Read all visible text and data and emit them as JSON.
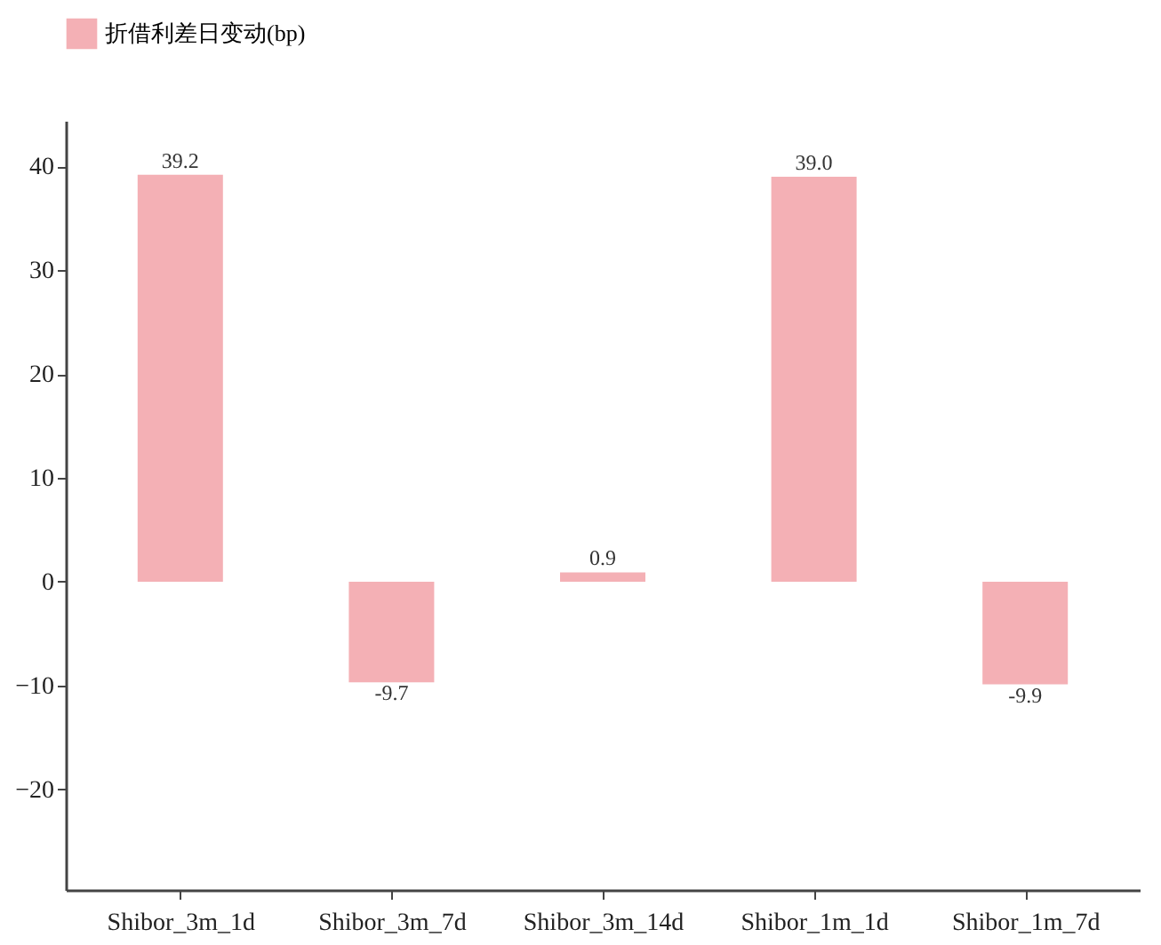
{
  "chart_data": {
    "type": "bar",
    "categories": [
      "Shibor_3m_1d",
      "Shibor_3m_7d",
      "Shibor_3m_14d",
      "Shibor_1m_1d",
      "Shibor_1m_7d"
    ],
    "series": [
      {
        "name": "折借利差日变动(bp)",
        "color": "#f4b0b5",
        "values": [
          39.2,
          -9.7,
          0.9,
          39.0,
          -9.9
        ],
        "value_labels": [
          "39.2",
          "-9.7",
          "0.9",
          "39.0",
          "-9.9"
        ]
      }
    ],
    "ylim": [
      -29.7,
      44.4
    ],
    "yticks": [
      {
        "value": -20,
        "label": "−20"
      },
      {
        "value": -10,
        "label": "−10"
      },
      0,
      10,
      20,
      30,
      40
    ],
    "legend": "top",
    "grid": false
  }
}
